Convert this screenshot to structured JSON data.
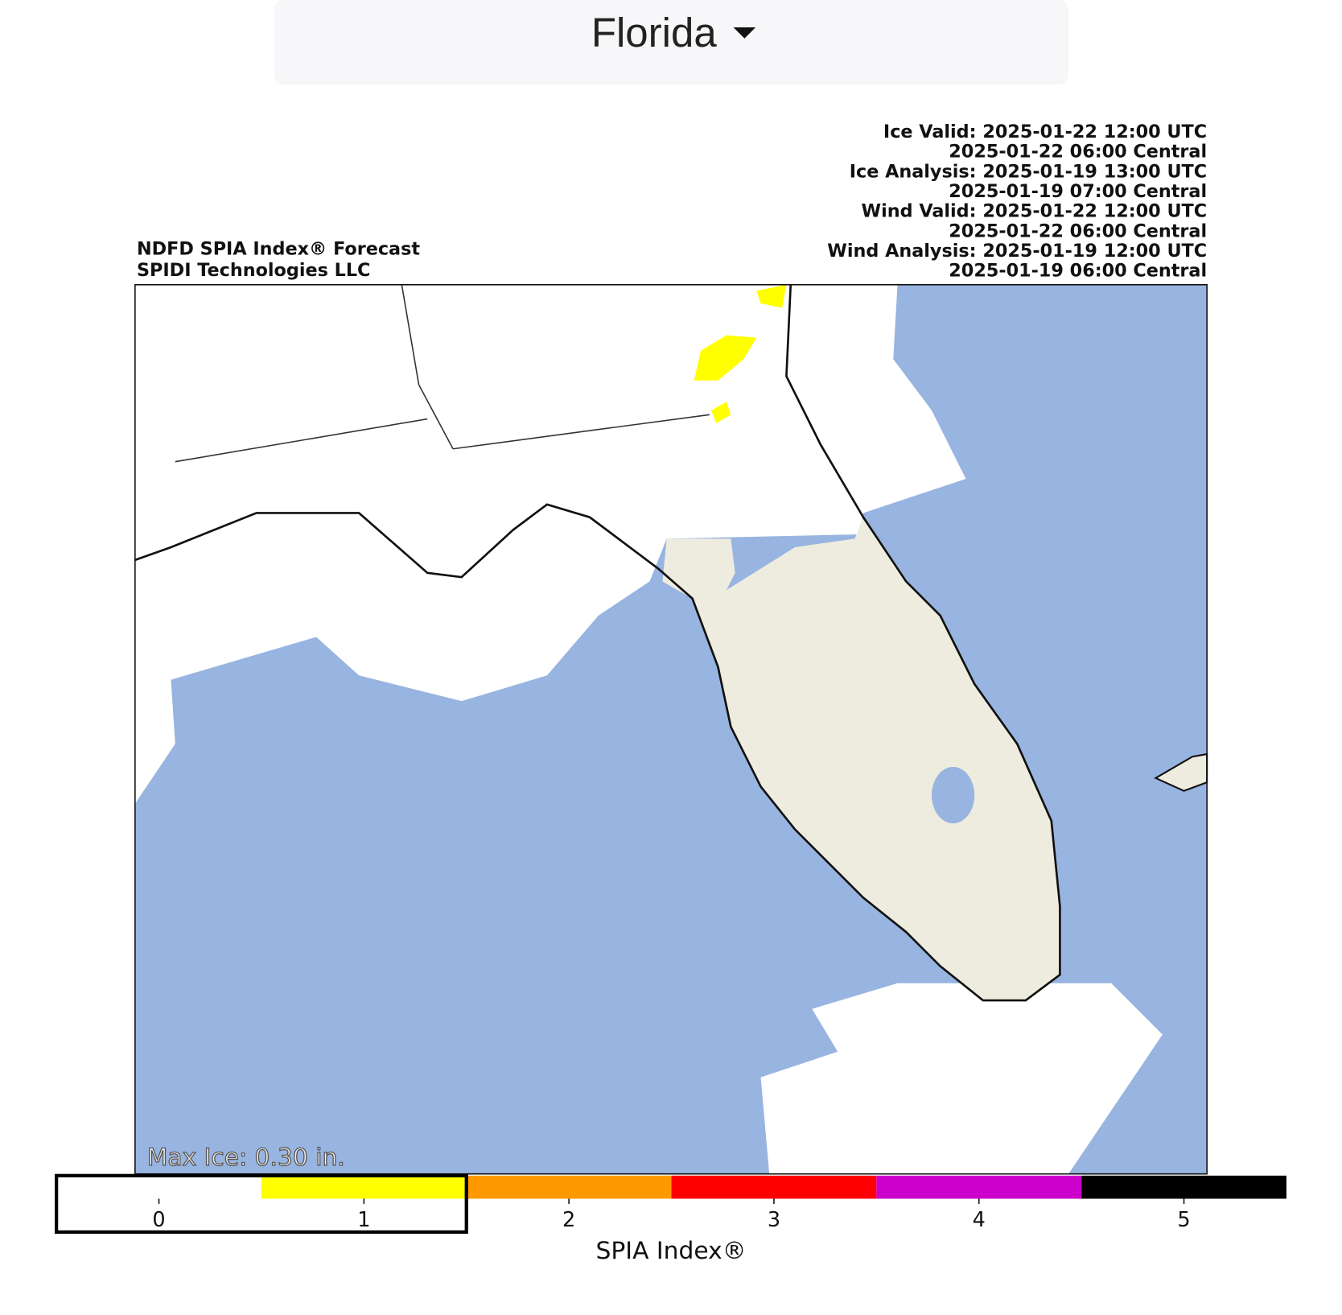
{
  "dropdown": {
    "label": "Florida"
  },
  "map": {
    "title": [
      "NDFD SPIA Index® Forecast",
      "SPIDI Technologies LLC"
    ],
    "times": [
      "Ice Valid: 2025-01-22 12:00 UTC",
      "2025-01-22 06:00 Central",
      "Ice Analysis: 2025-01-19 13:00 UTC",
      "2025-01-19 07:00 Central",
      "Wind Valid: 2025-01-22 12:00 UTC",
      "2025-01-22 06:00 Central",
      "Wind Analysis: 2025-01-19 12:00 UTC",
      "2025-01-19 06:00 Central"
    ],
    "annotation": "Max Ice: 0.30 in."
  },
  "colorbar": {
    "label": "SPIA Index®",
    "bounds": [
      -0.5,
      0.5,
      1.5,
      2.5,
      3.5,
      4.5,
      5.5
    ],
    "colors": [
      "#ffffff",
      "#ffff00",
      "#ff9900",
      "#ff0000",
      "#cc00cc",
      "#000000"
    ],
    "ticks": [
      0,
      1,
      2,
      3,
      4,
      5
    ]
  }
}
